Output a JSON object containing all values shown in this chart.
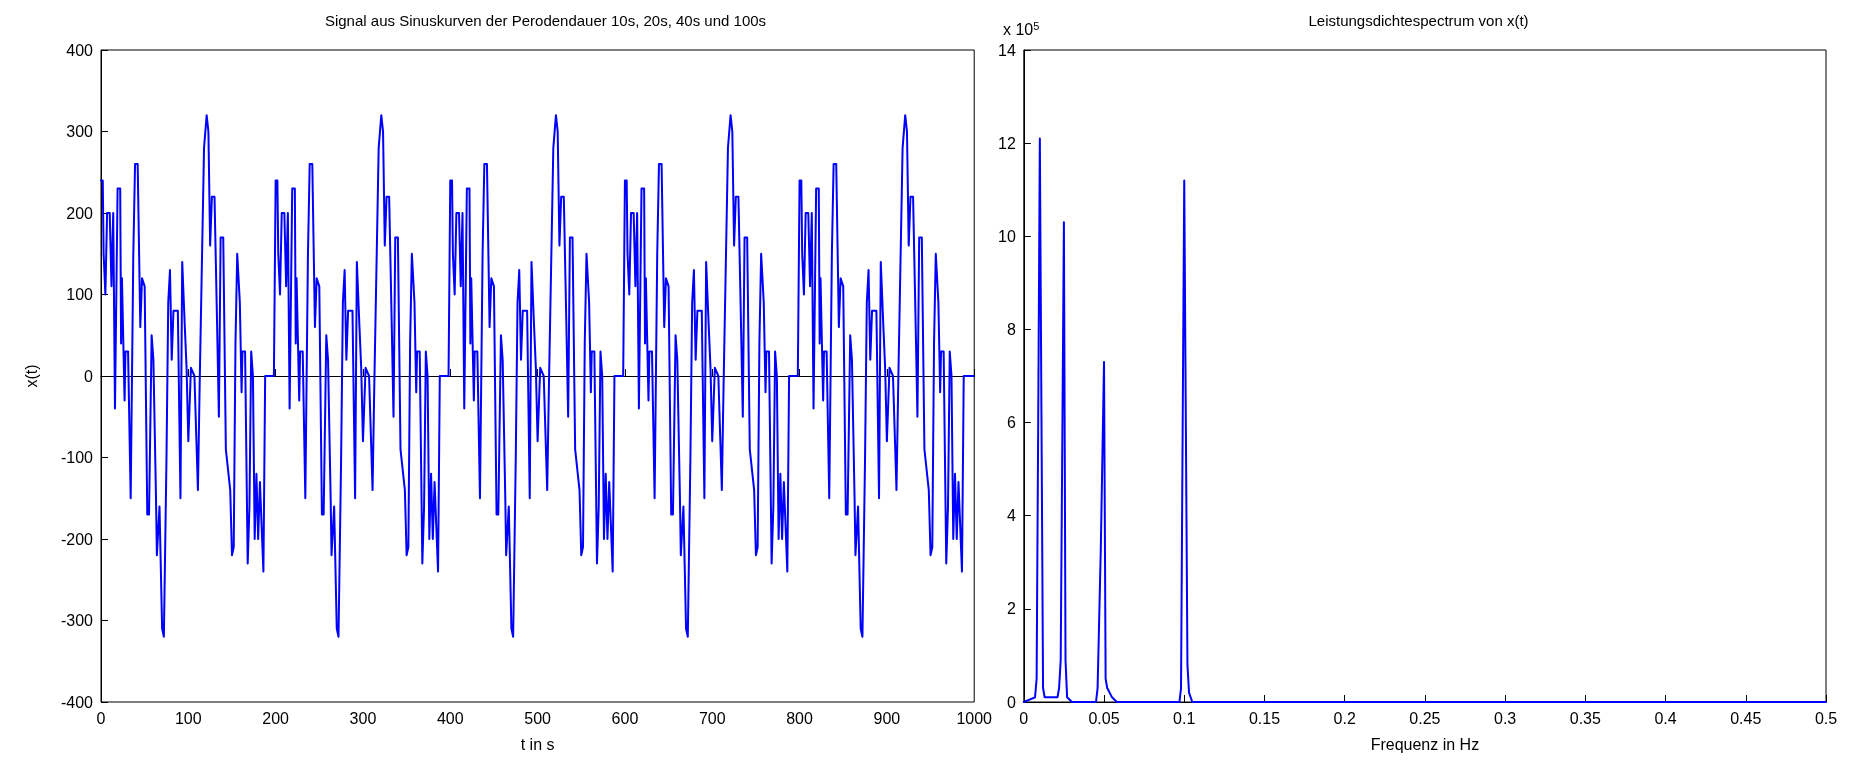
{
  "chart_data": [
    {
      "type": "line",
      "title": "Signal aus Sinuskurven der Perodendauer 10s, 20s, 40s und 100s",
      "xlabel": "t in s",
      "ylabel": "x(t)",
      "x": [
        0,
        2,
        3,
        5,
        7,
        10,
        12,
        14,
        16,
        19,
        22,
        23,
        24,
        27,
        28,
        31,
        34,
        37,
        39,
        42,
        45,
        47,
        50,
        53,
        55,
        58,
        60,
        63,
        64,
        67,
        70,
        72,
        75,
        77,
        79,
        81,
        83,
        88,
        91,
        93,
        96,
        98,
        100,
        103,
        107,
        111,
        113,
        118,
        121,
        123,
        125,
        127,
        130,
        133,
        135,
        137,
        140,
        143,
        148,
        150,
        152,
        154,
        156,
        159,
        161,
        162,
        165,
        168,
        170,
        172,
        174,
        176,
        178,
        180,
        182,
        186,
        188,
        198,
        200,
        202,
        203,
        205,
        207,
        210,
        212,
        214,
        216,
        219,
        222,
        223,
        224,
        227,
        228,
        231,
        234,
        237,
        239,
        242,
        245,
        247,
        250,
        253,
        255,
        258,
        260,
        263,
        264,
        267,
        270,
        272,
        275,
        277,
        279,
        281,
        283,
        288,
        291,
        293,
        296,
        298,
        300,
        303,
        307,
        311,
        313,
        318,
        321,
        323,
        325,
        327,
        330,
        333,
        335,
        337,
        340,
        343,
        348,
        350,
        352,
        354,
        356,
        359,
        361,
        362,
        365,
        368,
        370,
        372,
        374,
        376,
        378,
        380,
        382,
        386,
        388,
        398,
        400,
        402,
        403,
        405,
        407,
        410,
        412,
        414,
        416,
        419,
        422,
        423,
        424,
        427,
        428,
        431,
        434,
        437,
        439,
        442,
        445,
        447,
        450,
        453,
        455,
        458,
        460,
        463,
        464,
        467,
        470,
        472,
        475,
        477,
        479,
        481,
        483,
        488,
        491,
        493,
        496,
        498,
        500,
        503,
        507,
        511,
        513,
        518,
        521,
        523,
        525,
        527,
        530,
        533,
        535,
        537,
        540,
        543,
        548,
        550,
        552,
        554,
        556,
        559,
        561,
        562,
        565,
        568,
        570,
        572,
        574,
        576,
        578,
        580,
        582,
        586,
        588,
        598,
        600,
        602,
        603,
        605,
        607,
        610,
        612,
        614,
        616,
        619,
        622,
        623,
        624,
        627,
        628,
        631,
        634,
        637,
        639,
        642,
        645,
        647,
        650,
        653,
        655,
        658,
        660,
        663,
        664,
        667,
        670,
        672,
        675,
        677,
        679,
        681,
        683,
        688,
        691,
        693,
        696,
        698,
        700,
        703,
        707,
        711,
        713,
        718,
        721,
        723,
        725,
        727,
        730,
        733,
        735,
        737,
        740,
        743,
        748,
        750,
        752,
        754,
        756,
        759,
        761,
        762,
        765,
        768,
        770,
        772,
        774,
        776,
        778,
        780,
        782,
        786,
        788,
        798,
        800,
        802,
        803,
        805,
        807,
        810,
        812,
        814,
        816,
        819,
        822,
        823,
        824,
        827,
        828,
        831,
        834,
        837,
        839,
        842,
        845,
        847,
        850,
        853,
        855,
        858,
        860,
        863,
        864,
        867,
        870,
        872,
        875,
        877,
        879,
        881,
        883,
        888,
        891,
        893,
        896,
        898,
        900,
        903,
        907,
        911,
        913,
        918,
        921,
        923,
        925,
        927,
        930,
        933,
        935,
        937,
        940,
        943,
        948,
        950,
        952,
        954,
        956,
        959,
        961,
        962,
        965,
        968,
        970,
        972,
        974,
        976,
        978,
        980,
        982,
        986,
        988,
        998,
        1000
      ],
      "series": [
        {
          "color": "#0000ff",
          "values": [
            240,
            240,
            150,
            100,
            200,
            200,
            110,
            200,
            -40,
            230,
            230,
            40,
            120,
            -30,
            30,
            30,
            -150,
            150,
            260,
            260,
            60,
            120,
            110,
            -170,
            -170,
            50,
            20,
            -150,
            -220,
            -160,
            -310,
            -320,
            -100,
            90,
            130,
            20,
            80,
            80,
            -150,
            140,
            60,
            10,
            -80,
            10,
            0,
            -140,
            -10,
            280,
            320,
            300,
            160,
            220,
            220,
            60,
            -50,
            170,
            170,
            -90,
            -140,
            -220,
            -210,
            40,
            150,
            90,
            -20,
            30,
            30,
            -230,
            -160,
            30,
            0,
            -200,
            -120,
            -200,
            -130,
            -240,
            0,
            0,
            240,
            240,
            150,
            100,
            200,
            200,
            110,
            200,
            -40,
            230,
            230,
            40,
            120,
            -30,
            30,
            30,
            -150,
            150,
            260,
            260,
            60,
            120,
            110,
            -170,
            -170,
            50,
            20,
            -150,
            -220,
            -160,
            -310,
            -320,
            -100,
            90,
            130,
            20,
            80,
            80,
            -150,
            140,
            60,
            10,
            -80,
            10,
            0,
            -140,
            -10,
            280,
            320,
            300,
            160,
            220,
            220,
            60,
            -50,
            170,
            170,
            -90,
            -140,
            -220,
            -210,
            40,
            150,
            90,
            -20,
            30,
            30,
            -230,
            -160,
            30,
            0,
            -200,
            -120,
            -200,
            -130,
            -240,
            0,
            0,
            240,
            240,
            150,
            100,
            200,
            200,
            110,
            200,
            -40,
            230,
            230,
            40,
            120,
            -30,
            30,
            30,
            -150,
            150,
            260,
            260,
            60,
            120,
            110,
            -170,
            -170,
            50,
            20,
            -150,
            -220,
            -160,
            -310,
            -320,
            -100,
            90,
            130,
            20,
            80,
            80,
            -150,
            140,
            60,
            10,
            -80,
            10,
            0,
            -140,
            -10,
            280,
            320,
            300,
            160,
            220,
            220,
            60,
            -50,
            170,
            170,
            -90,
            -140,
            -220,
            -210,
            40,
            150,
            90,
            -20,
            30,
            30,
            -230,
            -160,
            30,
            0,
            -200,
            -120,
            -200,
            -130,
            -240,
            0,
            0,
            240,
            240,
            150,
            100,
            200,
            200,
            110,
            200,
            -40,
            230,
            230,
            40,
            120,
            -30,
            30,
            30,
            -150,
            150,
            260,
            260,
            60,
            120,
            110,
            -170,
            -170,
            50,
            20,
            -150,
            -220,
            -160,
            -310,
            -320,
            -100,
            90,
            130,
            20,
            80,
            80,
            -150,
            140,
            60,
            10,
            -80,
            10,
            0,
            -140,
            -10,
            280,
            320,
            300,
            160,
            220,
            220,
            60,
            -50,
            170,
            170,
            -90,
            -140,
            -220,
            -210,
            40,
            150,
            90,
            -20,
            30,
            30,
            -230,
            -160,
            30,
            0,
            -200,
            -120,
            -200,
            -130,
            -240,
            0,
            0,
            240,
            240,
            150,
            100,
            200,
            200,
            110,
            200,
            -40,
            230,
            230,
            40,
            120,
            -30,
            30,
            30,
            -150,
            150,
            260,
            260,
            60,
            120,
            110,
            -170,
            -170,
            50,
            20,
            -150,
            -220,
            -160,
            -310,
            -320,
            -100,
            90,
            130,
            20,
            80,
            80,
            -150,
            140,
            60,
            10,
            -80,
            10,
            0,
            -140,
            -10,
            280,
            320,
            300,
            160,
            220,
            220,
            60,
            -50,
            170,
            170,
            -90,
            -140,
            -220,
            -210,
            40,
            150,
            90,
            -20,
            30,
            30,
            -230,
            -160,
            30,
            0,
            -200,
            -120,
            -200,
            -130,
            -240,
            0,
            0,
            0
          ]
        }
      ],
      "xlim": [
        0,
        1000
      ],
      "xticks": [
        0,
        100,
        200,
        300,
        400,
        500,
        600,
        700,
        800,
        900,
        1000
      ],
      "ylim": [
        -400,
        400
      ],
      "yticks": [
        -400,
        -300,
        -200,
        -100,
        0,
        100,
        200,
        300,
        400
      ],
      "marker": "none",
      "line_style": "solid"
    },
    {
      "type": "line",
      "title": "Leistungsdichtespectrum von x(t)",
      "xlabel": "Frequenz in Hz",
      "annotations": [
        "x 10$^{5}$"
      ],
      "x": [
        0,
        0.007,
        0.008,
        0.009,
        0.01,
        0.011,
        0.012,
        0.013,
        0.021,
        0.022,
        0.023,
        0.024,
        0.025,
        0.026,
        0.027,
        0.03,
        0.045,
        0.046,
        0.047,
        0.048,
        0.049,
        0.05,
        0.051,
        0.052,
        0.055,
        0.058,
        0.097,
        0.098,
        0.099,
        0.1,
        0.101,
        0.102,
        0.103,
        0.105,
        0.5
      ],
      "series": [
        {
          "color": "#0000ff",
          "values": [
            0,
            0.1,
            0.5,
            6.1,
            12.1,
            6.2,
            0.3,
            0.1,
            0.1,
            0.3,
            0.9,
            5.6,
            10.3,
            0.9,
            0.1,
            0,
            0,
            0.3,
            1.8,
            3.3,
            5.3,
            7.3,
            0.5,
            0.3,
            0.1,
            0,
            0,
            0.3,
            5.8,
            11.2,
            6,
            0.8,
            0.2,
            0,
            0
          ]
        }
      ],
      "xlim": [
        0,
        0.5
      ],
      "xticks": [
        0,
        0.05,
        0.1,
        0.15,
        0.2,
        0.25,
        0.3,
        0.35,
        0.4,
        0.45,
        0.5
      ],
      "ylim": [
        0,
        14
      ],
      "yticks": [
        0,
        2,
        4,
        6,
        8,
        10,
        12,
        14
      ],
      "marker": "none",
      "line_style": "solid"
    }
  ]
}
